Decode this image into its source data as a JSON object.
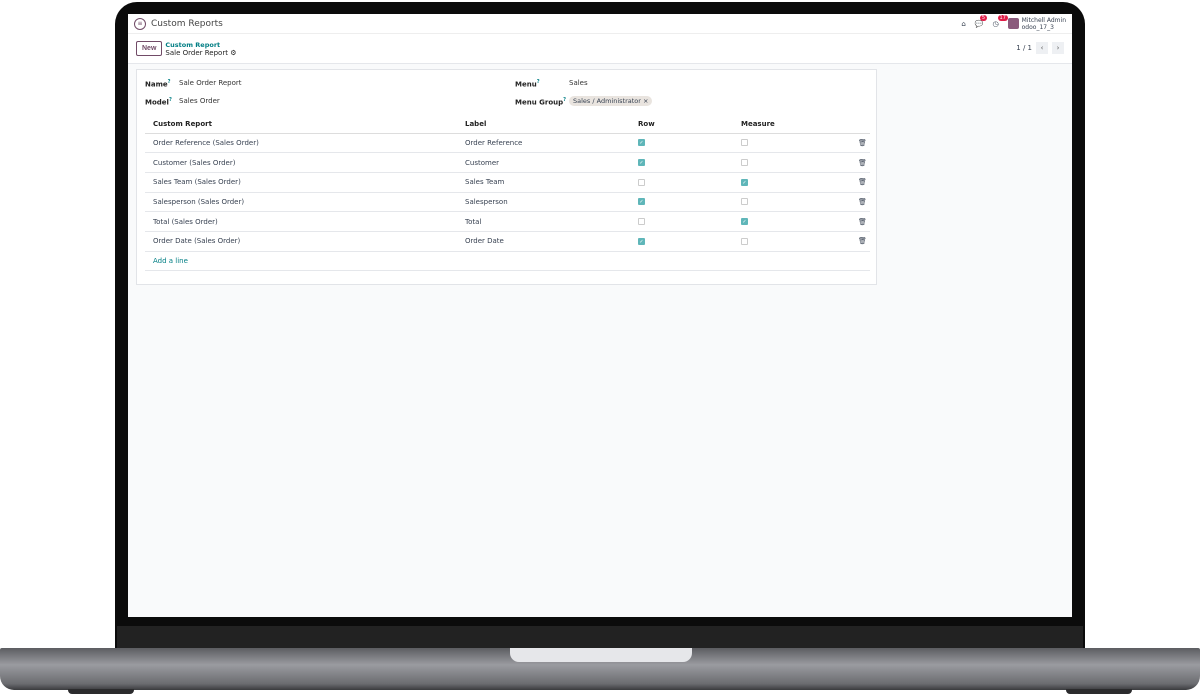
{
  "app": {
    "title": "Custom Reports",
    "messages_count": "5",
    "activities_count": "17",
    "user_name": "Mitchell Admin",
    "db_name": "odoo_17_3"
  },
  "control": {
    "new_label": "New",
    "breadcrumb_parent": "Custom Report",
    "breadcrumb_current": "Sale Order Report",
    "pager": "1 / 1"
  },
  "form": {
    "name_label": "Name",
    "name_value": "Sale Order Report",
    "model_label": "Model",
    "model_value": "Sales Order",
    "menu_label": "Menu",
    "menu_value": "Sales",
    "menu_group_label": "Menu Group",
    "menu_group_tag": "Sales / Administrator"
  },
  "table": {
    "headers": [
      "Custom Report",
      "Label",
      "Row",
      "Measure"
    ],
    "rows": [
      {
        "field": "Order Reference (Sales Order)",
        "label": "Order Reference",
        "row": true,
        "measure": false
      },
      {
        "field": "Customer (Sales Order)",
        "label": "Customer",
        "row": true,
        "measure": false
      },
      {
        "field": "Sales Team (Sales Order)",
        "label": "Sales Team",
        "row": false,
        "measure": true
      },
      {
        "field": "Salesperson (Sales Order)",
        "label": "Salesperson",
        "row": true,
        "measure": false
      },
      {
        "field": "Total (Sales Order)",
        "label": "Total",
        "row": false,
        "measure": true
      },
      {
        "field": "Order Date (Sales Order)",
        "label": "Order Date",
        "row": true,
        "measure": false
      }
    ],
    "add_line": "Add a line"
  },
  "colors": {
    "accent": "#017e84",
    "primary": "#714b67",
    "checkbox": "#5fb6b9"
  }
}
